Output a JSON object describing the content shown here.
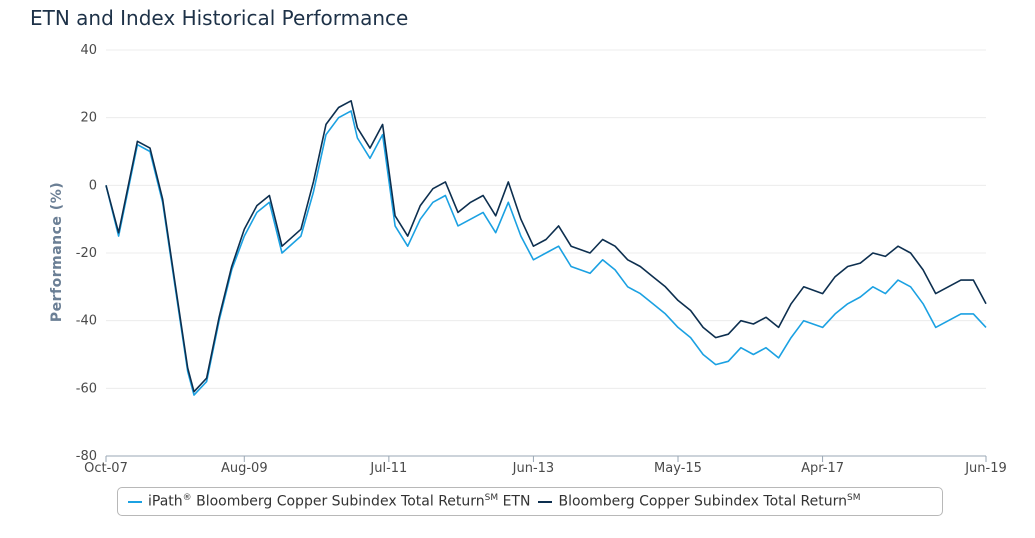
{
  "title": "ETN and Index Historical Performance",
  "chart_data": {
    "type": "line",
    "title": "ETN and Index Historical Performance",
    "ylabel": "Performance (%)",
    "xlabel": "",
    "ylim": [
      -80,
      40
    ],
    "yticks": [
      40,
      20,
      0,
      -20,
      -40,
      -60,
      -80
    ],
    "xlim": [
      "2007-10",
      "2019-06"
    ],
    "xticks": [
      "Oct-07",
      "Aug-09",
      "Jul-11",
      "Jun-13",
      "May-15",
      "Apr-17",
      "Jun-19"
    ],
    "grid": "horizontal",
    "legend_position": "bottom",
    "series": [
      {
        "name": "iPath® Bloomberg Copper Subindex Total Return℠ ETN",
        "legend_main": "iPath",
        "legend_sup1": "®",
        "legend_mid": " Bloomberg Copper Subindex Total Return",
        "legend_sup2": "SM",
        "legend_tail": " ETN",
        "color": "#1ba1e2",
        "x": [
          "2007-10",
          "2007-12",
          "2008-03",
          "2008-05",
          "2008-07",
          "2008-09",
          "2008-11",
          "2008-12",
          "2009-02",
          "2009-04",
          "2009-06",
          "2009-08",
          "2009-10",
          "2009-12",
          "2010-02",
          "2010-05",
          "2010-07",
          "2010-09",
          "2010-11",
          "2011-01",
          "2011-02",
          "2011-04",
          "2011-06",
          "2011-08",
          "2011-10",
          "2011-12",
          "2012-02",
          "2012-04",
          "2012-06",
          "2012-08",
          "2012-10",
          "2012-12",
          "2013-02",
          "2013-04",
          "2013-06",
          "2013-08",
          "2013-10",
          "2013-12",
          "2014-03",
          "2014-05",
          "2014-07",
          "2014-09",
          "2014-11",
          "2015-01",
          "2015-03",
          "2015-05",
          "2015-07",
          "2015-09",
          "2015-11",
          "2016-01",
          "2016-03",
          "2016-05",
          "2016-07",
          "2016-09",
          "2016-11",
          "2017-01",
          "2017-04",
          "2017-06",
          "2017-08",
          "2017-10",
          "2017-12",
          "2018-02",
          "2018-04",
          "2018-06",
          "2018-08",
          "2018-10",
          "2018-12",
          "2019-02",
          "2019-04",
          "2019-06"
        ],
        "values": [
          0,
          -15,
          12,
          10,
          -5,
          -30,
          -55,
          -62,
          -58,
          -40,
          -25,
          -15,
          -8,
          -5,
          -20,
          -15,
          -2,
          15,
          20,
          22,
          14,
          8,
          15,
          -12,
          -18,
          -10,
          -5,
          -3,
          -12,
          -10,
          -8,
          -14,
          -5,
          -15,
          -22,
          -20,
          -18,
          -24,
          -26,
          -22,
          -25,
          -30,
          -32,
          -35,
          -38,
          -42,
          -45,
          -50,
          -53,
          -52,
          -48,
          -50,
          -48,
          -51,
          -45,
          -40,
          -42,
          -38,
          -35,
          -33,
          -30,
          -32,
          -28,
          -30,
          -35,
          -42,
          -40,
          -38,
          -38,
          -42
        ]
      },
      {
        "name": "Bloomberg Copper Subindex Total Return℠",
        "legend_main": "Bloomberg Copper Subindex Total Return",
        "legend_sup": "SM",
        "color": "#0d2f4f",
        "x": [
          "2007-10",
          "2007-12",
          "2008-03",
          "2008-05",
          "2008-07",
          "2008-09",
          "2008-11",
          "2008-12",
          "2009-02",
          "2009-04",
          "2009-06",
          "2009-08",
          "2009-10",
          "2009-12",
          "2010-02",
          "2010-05",
          "2010-07",
          "2010-09",
          "2010-11",
          "2011-01",
          "2011-02",
          "2011-04",
          "2011-06",
          "2011-08",
          "2011-10",
          "2011-12",
          "2012-02",
          "2012-04",
          "2012-06",
          "2012-08",
          "2012-10",
          "2012-12",
          "2013-02",
          "2013-04",
          "2013-06",
          "2013-08",
          "2013-10",
          "2013-12",
          "2014-03",
          "2014-05",
          "2014-07",
          "2014-09",
          "2014-11",
          "2015-01",
          "2015-03",
          "2015-05",
          "2015-07",
          "2015-09",
          "2015-11",
          "2016-01",
          "2016-03",
          "2016-05",
          "2016-07",
          "2016-09",
          "2016-11",
          "2017-01",
          "2017-04",
          "2017-06",
          "2017-08",
          "2017-10",
          "2017-12",
          "2018-02",
          "2018-04",
          "2018-06",
          "2018-08",
          "2018-10",
          "2018-12",
          "2019-02",
          "2019-04",
          "2019-06"
        ],
        "values": [
          0,
          -14,
          13,
          11,
          -4,
          -29,
          -54,
          -61,
          -57,
          -39,
          -24,
          -13,
          -6,
          -3,
          -18,
          -13,
          1,
          18,
          23,
          25,
          17,
          11,
          18,
          -9,
          -15,
          -6,
          -1,
          1,
          -8,
          -5,
          -3,
          -9,
          1,
          -10,
          -18,
          -16,
          -12,
          -18,
          -20,
          -16,
          -18,
          -22,
          -24,
          -27,
          -30,
          -34,
          -37,
          -42,
          -45,
          -44,
          -40,
          -41,
          -39,
          -42,
          -35,
          -30,
          -32,
          -27,
          -24,
          -23,
          -20,
          -21,
          -18,
          -20,
          -25,
          -32,
          -30,
          -28,
          -28,
          -35
        ]
      }
    ]
  }
}
